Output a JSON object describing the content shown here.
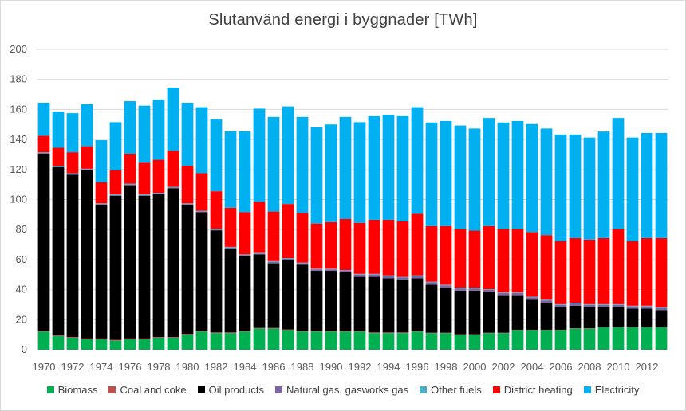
{
  "chart_data": {
    "type": "bar",
    "stacked": true,
    "title": "Slutanvänd energi i byggnader  [TWh]",
    "xlabel": "",
    "ylabel": "",
    "ylim": [
      0,
      200
    ],
    "yticks": [
      0,
      20,
      40,
      60,
      80,
      100,
      120,
      140,
      160,
      180,
      200
    ],
    "grid": true,
    "legend_position": "bottom",
    "categories": [
      1970,
      1971,
      1972,
      1973,
      1974,
      1975,
      1976,
      1977,
      1978,
      1979,
      1980,
      1981,
      1982,
      1983,
      1984,
      1985,
      1986,
      1987,
      1988,
      1989,
      1990,
      1991,
      1992,
      1993,
      1994,
      1995,
      1996,
      1997,
      1998,
      1999,
      2000,
      2001,
      2002,
      2003,
      2004,
      2005,
      2006,
      2007,
      2008,
      2009,
      2010,
      2011,
      2012,
      2013
    ],
    "xtick_labels": [
      "1970",
      "",
      "1972",
      "",
      "1974",
      "",
      "1976",
      "",
      "1978",
      "",
      "1980",
      "",
      "1982",
      "",
      "1984",
      "",
      "1986",
      "",
      "1988",
      "",
      "1990",
      "",
      "1992",
      "",
      "1994",
      "",
      "1996",
      "",
      "1998",
      "",
      "2000",
      "",
      "2002",
      "",
      "2004",
      "",
      "2006",
      "",
      "2008",
      "",
      "2010",
      "",
      "2012",
      ""
    ],
    "series": [
      {
        "name": "Biomass",
        "color": "#00b050",
        "values": [
          12,
          9,
          8,
          7,
          7,
          6,
          7,
          7,
          8,
          8,
          10,
          12,
          11,
          11,
          12,
          14,
          14,
          13,
          12,
          12,
          12,
          12,
          12,
          11,
          11,
          11,
          12,
          11,
          11,
          10,
          10,
          11,
          11,
          13,
          13,
          13,
          13,
          14,
          14,
          15,
          15,
          15,
          15,
          15
        ]
      },
      {
        "name": "Coal and coke",
        "color": "#c0504d",
        "values": [
          0.5,
          0.5,
          0.5,
          0.5,
          0.5,
          0.5,
          0.5,
          0.5,
          0.5,
          0.5,
          0.5,
          0.5,
          0.5,
          0.5,
          0.5,
          0.5,
          0.5,
          0.5,
          0.5,
          0.5,
          0.5,
          0.5,
          0.5,
          0.5,
          0.5,
          0.5,
          0.5,
          0.3,
          0.3,
          0.3,
          0.3,
          0.3,
          0.3,
          0.3,
          0.3,
          0.3,
          0.3,
          0.3,
          0.3,
          0.3,
          0.3,
          0.3,
          0.3,
          0.3
        ]
      },
      {
        "name": "Oil products",
        "color": "#000000",
        "values": [
          118,
          112,
          108,
          112,
          89,
          96,
          102,
          95,
          95,
          99,
          86,
          79,
          68,
          56,
          50,
          49,
          43,
          46,
          44,
          40,
          40,
          39,
          36,
          37,
          36,
          35,
          35,
          32,
          30,
          29,
          29,
          27,
          25,
          23,
          20,
          18,
          15,
          15,
          14,
          13,
          13,
          12,
          12,
          11
        ]
      },
      {
        "name": "Natural gas, gasworks gas",
        "color": "#8064a2",
        "values": [
          0.5,
          0.5,
          0.5,
          0.5,
          0.5,
          0.5,
          0.5,
          0.5,
          0.5,
          0.5,
          0.5,
          0.5,
          0.5,
          0.5,
          0.5,
          0.5,
          1.0,
          1.0,
          1.0,
          1.0,
          1.0,
          1.0,
          1.5,
          1.5,
          1.5,
          1.5,
          1.5,
          1.5,
          1.5,
          1.5,
          1.5,
          1.5,
          1.5,
          1.5,
          1.5,
          1.5,
          1.5,
          1.5,
          1.5,
          1.5,
          1.5,
          1.5,
          1.5,
          1.5
        ]
      },
      {
        "name": "Other fuels",
        "color": "#4bacc6",
        "values": [
          0.5,
          0.5,
          0.5,
          0.5,
          0.5,
          0.5,
          0.5,
          0.5,
          0.5,
          0.5,
          0.5,
          0.5,
          0.5,
          0.5,
          0.5,
          0.5,
          0.5,
          0.5,
          0.5,
          0.5,
          0.5,
          0.5,
          0.5,
          0.5,
          0.5,
          0.5,
          0.5,
          0.5,
          0.5,
          0.5,
          0.5,
          0.5,
          0.5,
          0.5,
          0.5,
          0.5,
          0.5,
          0.5,
          0.5,
          0.5,
          0.5,
          0.5,
          0.5,
          0.5
        ]
      },
      {
        "name": "District heating",
        "color": "#ff0000",
        "values": [
          11,
          12,
          14,
          15,
          14,
          16,
          20,
          21,
          22,
          24,
          25,
          25,
          25,
          26,
          28,
          34,
          33,
          36,
          33,
          30,
          31,
          34,
          34,
          36,
          37,
          37,
          41,
          37,
          39,
          39,
          38,
          42,
          42,
          42,
          43,
          43,
          42,
          43,
          43,
          44,
          50,
          43,
          45,
          46
        ]
      },
      {
        "name": "Electricity",
        "color": "#00b0f0",
        "values": [
          22,
          24,
          26,
          28,
          28,
          32,
          35,
          38,
          40,
          42,
          42,
          44,
          48,
          51,
          54,
          62,
          63,
          65,
          64,
          64,
          65,
          68,
          67,
          69,
          70,
          70,
          71,
          69,
          70,
          69,
          68,
          72,
          71,
          72,
          72,
          71,
          71,
          69,
          68,
          71,
          74,
          69,
          70,
          70
        ]
      }
    ]
  }
}
